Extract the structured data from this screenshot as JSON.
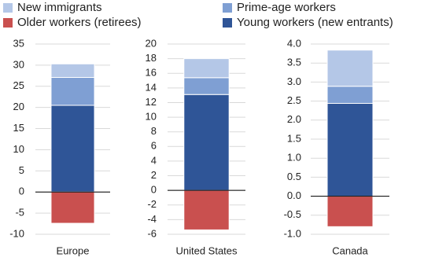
{
  "chart_data": [
    {
      "type": "bar",
      "categories": [
        "Europe"
      ],
      "ylim": [
        -10,
        35
      ],
      "yticks": [
        -10,
        -5,
        0,
        5,
        10,
        15,
        20,
        25,
        30,
        35
      ],
      "grid": true,
      "series": [
        {
          "name": "New immigrants",
          "color": "#b4c7e7",
          "values": [
            3.2
          ]
        },
        {
          "name": "Prime-age workers",
          "color": "#7f9fd3",
          "values": [
            6.6
          ]
        },
        {
          "name": "Older workers (retirees)",
          "color": "#c9504f",
          "values": [
            -7.4
          ]
        },
        {
          "name": "Young workers (new entrants)",
          "color": "#2f5597",
          "values": [
            20.5
          ]
        }
      ]
    },
    {
      "type": "bar",
      "categories": [
        "United States"
      ],
      "ylim": [
        -6,
        20
      ],
      "yticks": [
        -6,
        -4,
        -2,
        0,
        2,
        4,
        6,
        8,
        10,
        12,
        14,
        16,
        18,
        20
      ],
      "grid": true,
      "series": [
        {
          "name": "New immigrants",
          "color": "#b4c7e7",
          "values": [
            2.6
          ]
        },
        {
          "name": "Prime-age workers",
          "color": "#7f9fd3",
          "values": [
            2.3
          ]
        },
        {
          "name": "Older workers (retirees)",
          "color": "#c9504f",
          "values": [
            -5.4
          ]
        },
        {
          "name": "Young workers (new entrants)",
          "color": "#2f5597",
          "values": [
            13.1
          ]
        }
      ]
    },
    {
      "type": "bar",
      "categories": [
        "Canada"
      ],
      "ylim": [
        -1,
        4
      ],
      "yticks": [
        {
          "value": -1,
          "label": "-1.0"
        },
        {
          "value": -0.5,
          "label": "-0.5"
        },
        {
          "value": 0,
          "label": "0.0"
        },
        {
          "value": 0.5,
          "label": "0.5"
        },
        {
          "value": 1,
          "label": "1.0"
        },
        {
          "value": 1.5,
          "label": "1.5"
        },
        {
          "value": 2,
          "label": "2.0"
        },
        {
          "value": 2.5,
          "label": "2.5"
        },
        {
          "value": 3,
          "label": "3.0"
        },
        {
          "value": 3.5,
          "label": "3.5"
        },
        {
          "value": 4,
          "label": "4.0"
        }
      ],
      "grid": true,
      "series": [
        {
          "name": "New immigrants",
          "color": "#b4c7e7",
          "values": [
            0.95
          ]
        },
        {
          "name": "Prime-age workers",
          "color": "#7f9fd3",
          "values": [
            0.45
          ]
        },
        {
          "name": "Older workers (retirees)",
          "color": "#c9504f",
          "values": [
            -0.8
          ]
        },
        {
          "name": "Young workers (new entrants)",
          "color": "#2f5597",
          "values": [
            2.44
          ]
        }
      ]
    }
  ]
}
